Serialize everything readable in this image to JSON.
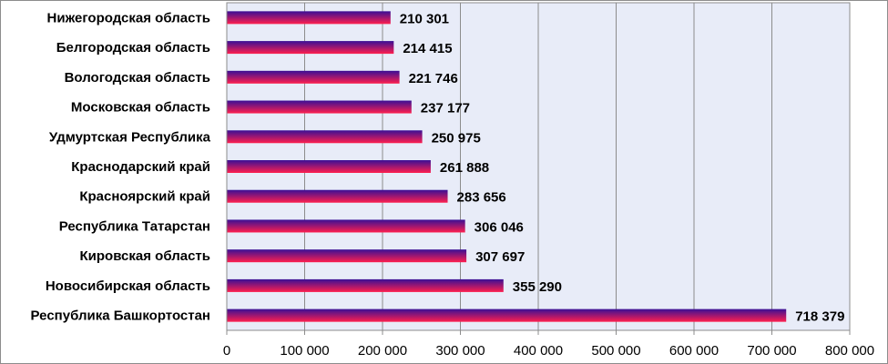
{
  "chart_data": {
    "type": "bar",
    "orientation": "horizontal",
    "categories": [
      "Нижегородская область",
      "Белгородская область",
      "Вологодская область",
      "Московская область",
      "Удмуртская Республика",
      "Краснодарский край",
      "Красноярский край",
      "Республика Татарстан",
      "Кировская область",
      "Новосибирская область",
      "Республика Башкортостан"
    ],
    "values": [
      210301,
      214415,
      221746,
      237177,
      250975,
      261888,
      283656,
      306046,
      307697,
      355290,
      718379
    ],
    "value_labels": [
      "210 301",
      "214 415",
      "221 746",
      "237 177",
      "250 975",
      "261 888",
      "283 656",
      "306 046",
      "307 697",
      "355 290",
      "718 379"
    ],
    "xlim": [
      0,
      800000
    ],
    "x_ticks": [
      0,
      100000,
      200000,
      300000,
      400000,
      500000,
      600000,
      700000,
      800000
    ],
    "x_tick_labels": [
      "0",
      "100 000",
      "200 000",
      "300 000",
      "400 000",
      "500 000",
      "600 000",
      "700 000",
      "800 000"
    ],
    "grid": true,
    "legend": false,
    "colors": {
      "bar_top": "#3a0f96",
      "bar_bottom": "#ff1f4e",
      "plot_background": "#e8ecf8",
      "grid": "#8c8c8c"
    }
  }
}
